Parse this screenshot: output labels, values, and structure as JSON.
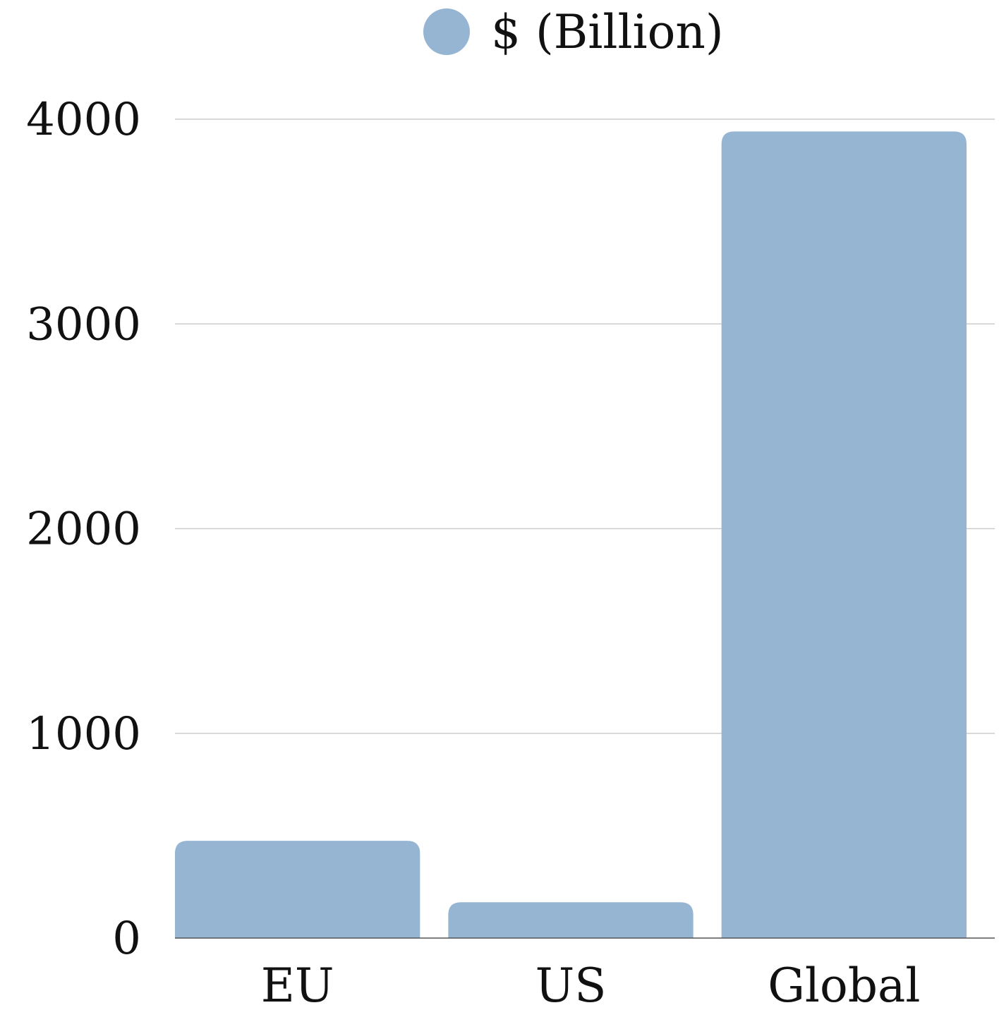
{
  "chart_data": {
    "type": "bar",
    "categories": [
      "EU",
      "US",
      "Global"
    ],
    "series": [
      {
        "name": "$ (Billion)",
        "values": [
          475,
          175,
          3940
        ],
        "color": "#95b5d2"
      }
    ],
    "ylim": [
      0,
      4000
    ],
    "yticks": [
      0,
      1000,
      2000,
      3000,
      4000
    ],
    "grid": true,
    "legend": "top-center"
  }
}
